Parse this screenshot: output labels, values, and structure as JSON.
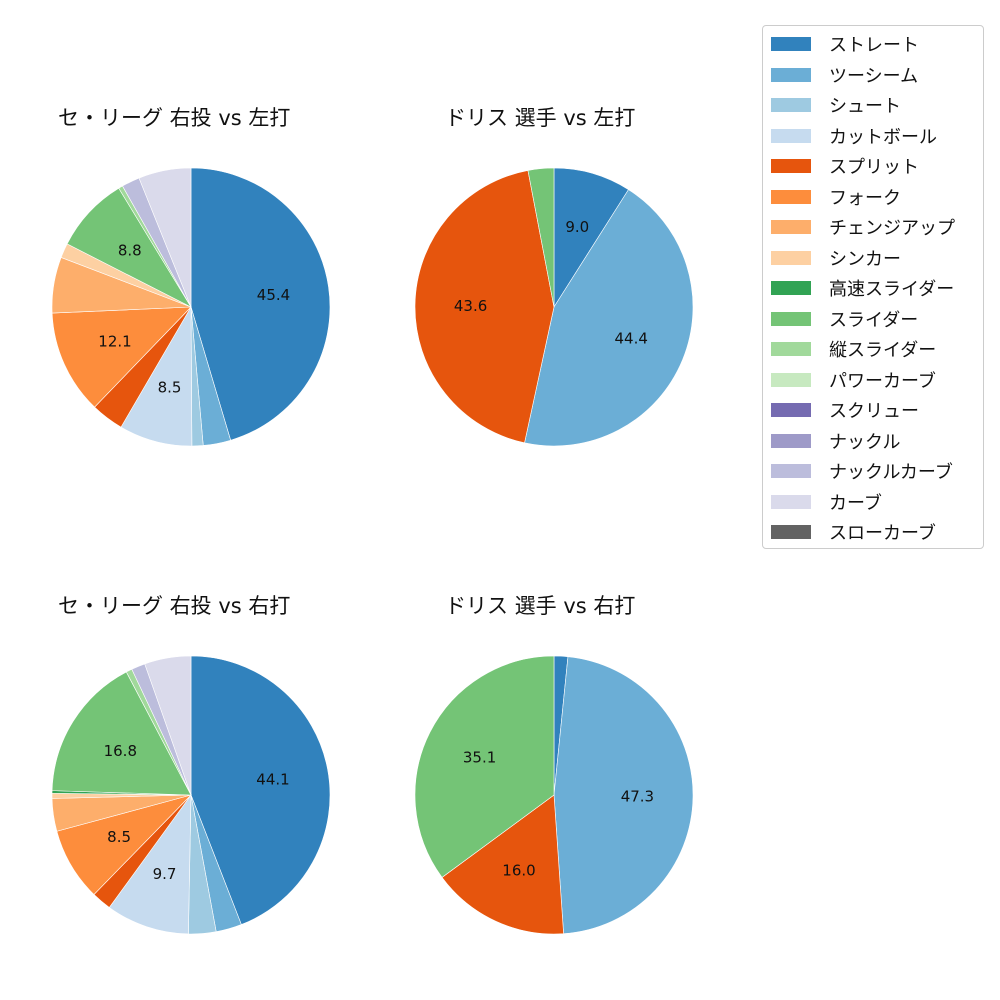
{
  "legend": {
    "items": [
      {
        "label": "ストレート",
        "color": "#3182bd"
      },
      {
        "label": "ツーシーム",
        "color": "#6baed6"
      },
      {
        "label": "シュート",
        "color": "#9ecae1"
      },
      {
        "label": "カットボール",
        "color": "#c6dbef"
      },
      {
        "label": "スプリット",
        "color": "#e6550d"
      },
      {
        "label": "フォーク",
        "color": "#fd8d3c"
      },
      {
        "label": "チェンジアップ",
        "color": "#fdae6b"
      },
      {
        "label": "シンカー",
        "color": "#fdd0a2"
      },
      {
        "label": "高速スライダー",
        "color": "#31a354"
      },
      {
        "label": "スライダー",
        "color": "#74c476"
      },
      {
        "label": "縦スライダー",
        "color": "#a1d99b"
      },
      {
        "label": "パワーカーブ",
        "color": "#c7e9c0"
      },
      {
        "label": "スクリュー",
        "color": "#756bb1"
      },
      {
        "label": "ナックル",
        "color": "#9e9ac8"
      },
      {
        "label": "ナックルカーブ",
        "color": "#bcbddc"
      },
      {
        "label": "カーブ",
        "color": "#dadaeb"
      },
      {
        "label": "スローカーブ",
        "color": "#636363"
      }
    ]
  },
  "chart_data": [
    {
      "type": "pie",
      "title": "セ・リーグ 右投 vs 左打",
      "start_angle": 90,
      "direction": "clockwise",
      "slices": [
        {
          "label": "ストレート",
          "value": 45.4,
          "shown": "45.4"
        },
        {
          "label": "ツーシーム",
          "value": 3.2,
          "shown": ""
        },
        {
          "label": "シュート",
          "value": 1.3,
          "shown": ""
        },
        {
          "label": "カットボール",
          "value": 8.5,
          "shown": "8.5"
        },
        {
          "label": "スプリット",
          "value": 3.8,
          "shown": ""
        },
        {
          "label": "フォーク",
          "value": 12.1,
          "shown": "12.1"
        },
        {
          "label": "チェンジアップ",
          "value": 6.5,
          "shown": ""
        },
        {
          "label": "シンカー",
          "value": 1.7,
          "shown": ""
        },
        {
          "label": "スライダー",
          "value": 8.8,
          "shown": "8.8"
        },
        {
          "label": "縦スライダー",
          "value": 0.5,
          "shown": ""
        },
        {
          "label": "ナックルカーブ",
          "value": 2.1,
          "shown": ""
        },
        {
          "label": "カーブ",
          "value": 6.1,
          "shown": ""
        }
      ]
    },
    {
      "type": "pie",
      "title": "ドリス 選手 vs 左打",
      "start_angle": 90,
      "direction": "clockwise",
      "slices": [
        {
          "label": "ストレート",
          "value": 9.0,
          "shown": "9.0"
        },
        {
          "label": "ツーシーム",
          "value": 44.4,
          "shown": "44.4"
        },
        {
          "label": "スプリット",
          "value": 43.6,
          "shown": "43.6"
        },
        {
          "label": "スライダー",
          "value": 3.0,
          "shown": ""
        }
      ]
    },
    {
      "type": "pie",
      "title": "セ・リーグ 右投 vs 右打",
      "start_angle": 90,
      "direction": "clockwise",
      "slices": [
        {
          "label": "ストレート",
          "value": 44.1,
          "shown": "44.1"
        },
        {
          "label": "ツーシーム",
          "value": 3.0,
          "shown": ""
        },
        {
          "label": "シュート",
          "value": 3.2,
          "shown": ""
        },
        {
          "label": "カットボール",
          "value": 9.7,
          "shown": "9.7"
        },
        {
          "label": "スプリット",
          "value": 2.3,
          "shown": ""
        },
        {
          "label": "フォーク",
          "value": 8.5,
          "shown": "8.5"
        },
        {
          "label": "チェンジアップ",
          "value": 3.8,
          "shown": ""
        },
        {
          "label": "シンカー",
          "value": 0.6,
          "shown": ""
        },
        {
          "label": "高速スライダー",
          "value": 0.3,
          "shown": ""
        },
        {
          "label": "スライダー",
          "value": 16.8,
          "shown": "16.8"
        },
        {
          "label": "縦スライダー",
          "value": 0.7,
          "shown": ""
        },
        {
          "label": "ナックルカーブ",
          "value": 1.6,
          "shown": ""
        },
        {
          "label": "カーブ",
          "value": 5.4,
          "shown": ""
        }
      ]
    },
    {
      "type": "pie",
      "title": "ドリス 選手 vs 右打",
      "start_angle": 90,
      "direction": "clockwise",
      "slices": [
        {
          "label": "ストレート",
          "value": 1.6,
          "shown": ""
        },
        {
          "label": "ツーシーム",
          "value": 47.3,
          "shown": "47.3"
        },
        {
          "label": "スプリット",
          "value": 16.0,
          "shown": "16.0"
        },
        {
          "label": "スライダー",
          "value": 35.1,
          "shown": "35.1"
        }
      ]
    }
  ]
}
